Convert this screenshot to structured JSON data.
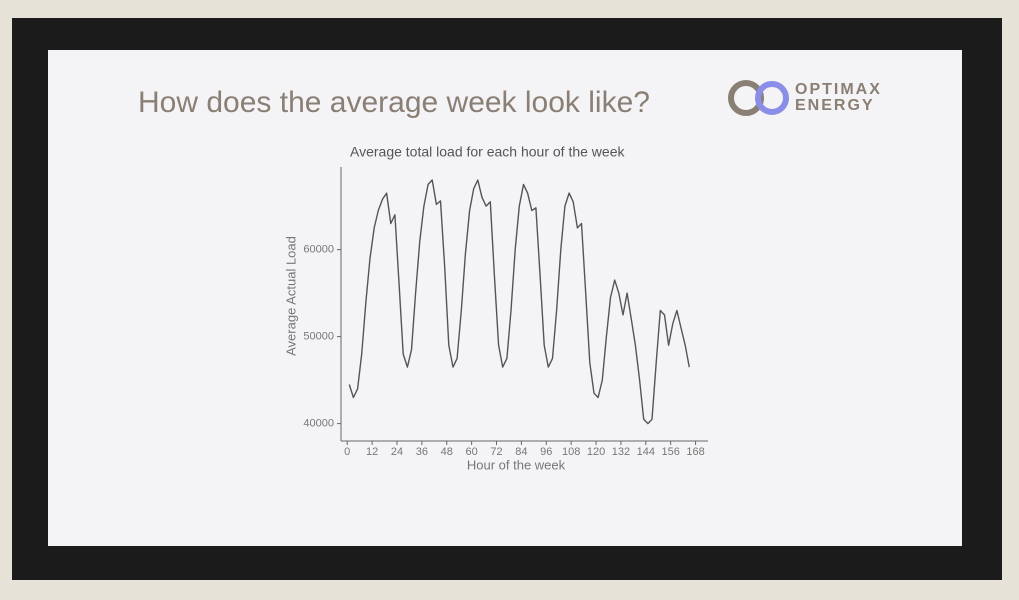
{
  "slide_title": "How does the average week look like?",
  "logo": {
    "line1": "OPTIMAX",
    "line2": "ENERGY"
  },
  "chart_data": {
    "type": "line",
    "title": "Average total load for each hour of the week",
    "x_label": "Hour of the week",
    "y_label": "Average Actual Load",
    "xlim": [
      -3,
      174
    ],
    "xticks": [
      0,
      12,
      24,
      36,
      48,
      60,
      72,
      84,
      96,
      108,
      120,
      132,
      144,
      156,
      168
    ],
    "ylim": [
      38000,
      69500
    ],
    "yticks": [
      40000,
      50000,
      60000
    ],
    "grid": false,
    "series": [
      {
        "name": "Average Actual Load",
        "color": "#555555",
        "x": [
          1,
          3,
          5,
          7,
          9,
          11,
          13,
          15,
          17,
          19,
          21,
          23,
          25,
          27,
          29,
          31,
          33,
          35,
          37,
          39,
          41,
          43,
          45,
          47,
          49,
          51,
          53,
          55,
          57,
          59,
          61,
          63,
          65,
          67,
          69,
          71,
          73,
          75,
          77,
          79,
          81,
          83,
          85,
          87,
          89,
          91,
          93,
          95,
          97,
          99,
          101,
          103,
          105,
          107,
          109,
          111,
          113,
          115,
          117,
          119,
          121,
          123,
          125,
          127,
          129,
          131,
          133,
          135,
          137,
          139,
          141,
          143,
          145,
          147,
          149,
          151,
          153,
          155,
          157,
          159,
          161,
          163,
          165
        ],
        "values": [
          44500,
          43000,
          44000,
          48000,
          54000,
          59000,
          62500,
          64500,
          65800,
          66500,
          63000,
          64000,
          56000,
          48000,
          46500,
          48500,
          55000,
          61000,
          65000,
          67500,
          68000,
          65200,
          65600,
          58000,
          49000,
          46500,
          47500,
          53000,
          59500,
          64500,
          67000,
          68000,
          66000,
          65000,
          65500,
          57000,
          49000,
          46500,
          47500,
          53000,
          60000,
          65000,
          67500,
          66500,
          64500,
          64800,
          57000,
          49000,
          46500,
          47500,
          53000,
          60000,
          65000,
          66500,
          65500,
          62500,
          63000,
          55000,
          47000,
          43500,
          43000,
          45000,
          50000,
          54500,
          56500,
          55000,
          52500,
          55000,
          52000,
          49000,
          45000,
          40500,
          40000,
          40500,
          47000,
          53000,
          52500,
          49000,
          51500,
          53000,
          51000,
          49000,
          46500
        ]
      }
    ]
  }
}
